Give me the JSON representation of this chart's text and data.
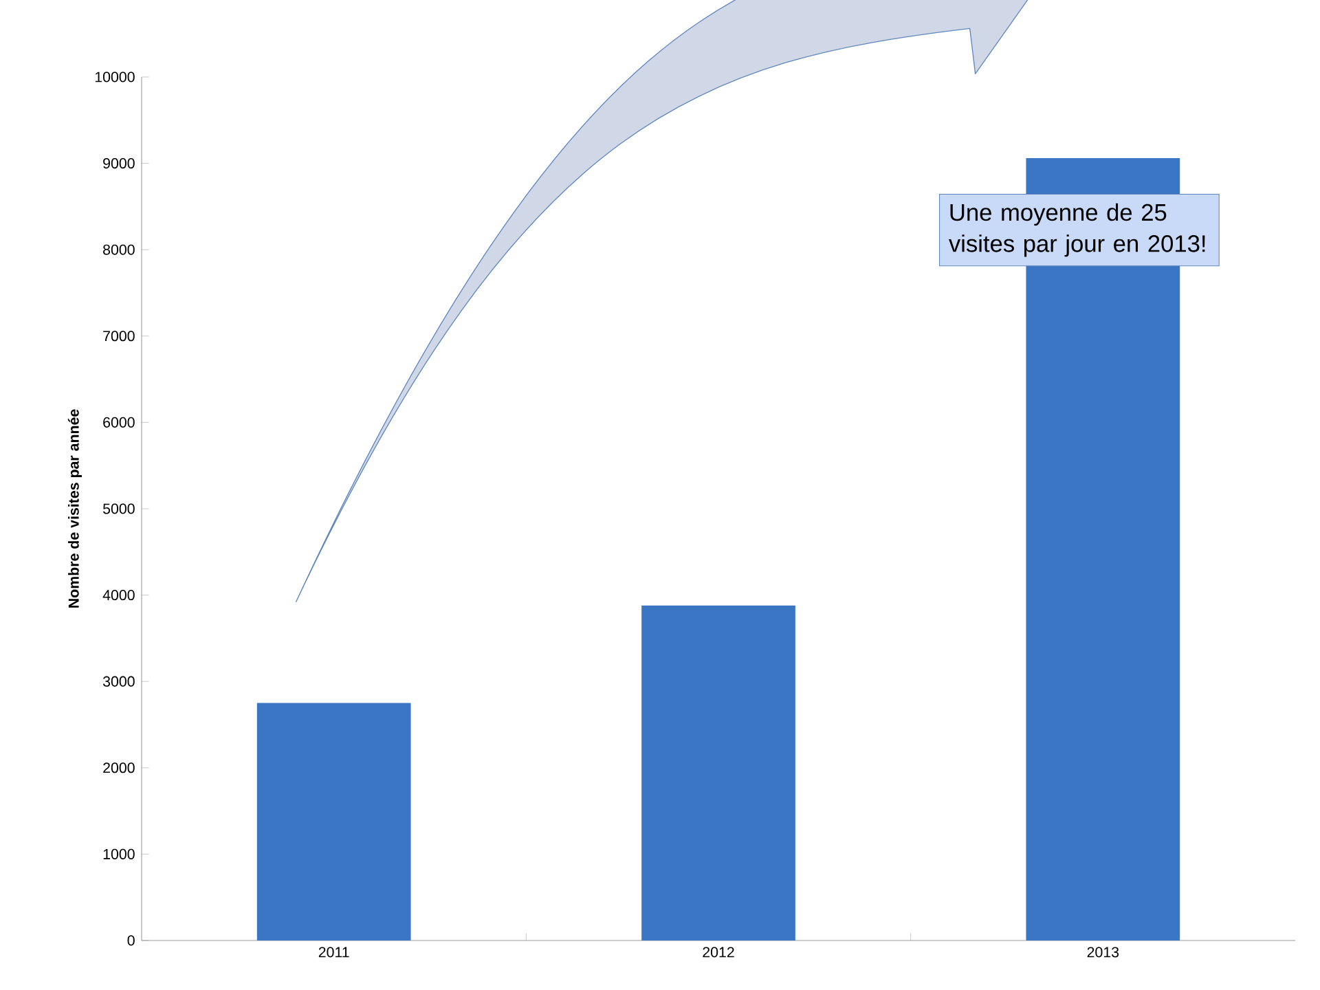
{
  "chart_data": {
    "type": "bar",
    "ylabel": "Nombre de visites  par année",
    "categories": [
      "2011",
      "2012",
      "2013"
    ],
    "values": [
      2750,
      3880,
      9060
    ],
    "color": "#3a76c4",
    "ylim": [
      0,
      10000
    ],
    "yticks": [
      0,
      1000,
      2000,
      3000,
      4000,
      5000,
      6000,
      7000,
      8000,
      9000,
      10000
    ],
    "annotations": [
      "Une moyenne de 25 visites par jour en 2013!"
    ]
  }
}
